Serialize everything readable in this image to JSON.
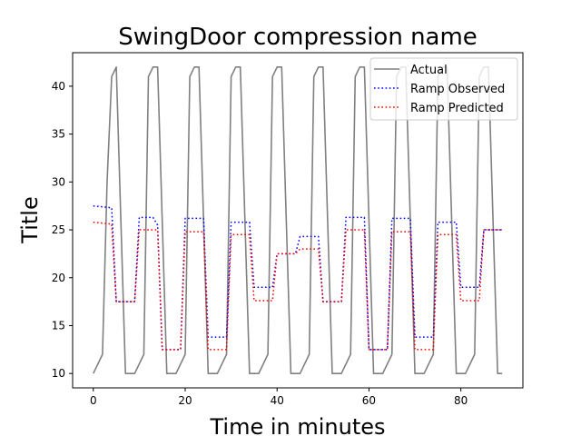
{
  "chart_data": {
    "type": "line",
    "title": "SwingDoor compression name",
    "xlabel": "Time in minutes",
    "ylabel": "Title",
    "xlim": [
      -4.5,
      93.5
    ],
    "ylim": [
      8.5,
      43.5
    ],
    "xticks": [
      0,
      20,
      40,
      60,
      80
    ],
    "yticks": [
      10,
      15,
      20,
      25,
      30,
      35,
      40
    ],
    "legend_position": "top-right",
    "grid": false,
    "series": [
      {
        "name": "Actual",
        "color": "#808080",
        "style": "solid",
        "x": [
          0,
          2,
          3,
          4,
          5,
          7,
          9,
          11,
          12,
          13,
          14,
          16,
          18,
          20,
          21,
          22,
          23,
          25,
          27,
          29,
          30,
          31,
          32,
          34,
          36,
          38,
          39,
          40,
          41,
          43,
          45,
          47,
          48,
          49,
          50,
          52,
          54,
          56,
          57,
          58,
          59,
          61,
          63,
          65,
          66,
          67,
          68,
          70,
          72,
          74,
          75,
          76,
          77,
          79,
          81,
          83,
          84,
          85,
          86,
          88,
          89
        ],
        "y": [
          10,
          12,
          30,
          41,
          42,
          10,
          10,
          12,
          41,
          42,
          42,
          10,
          10,
          12,
          41,
          42,
          42,
          10,
          10,
          12,
          41,
          42,
          42,
          10,
          10,
          12,
          41,
          42,
          42,
          10,
          10,
          12,
          41,
          42,
          42,
          10,
          10,
          12,
          41,
          42,
          42,
          10,
          10,
          12,
          41,
          42,
          42,
          10,
          10,
          12,
          41,
          42,
          42,
          10,
          10,
          12,
          41,
          42,
          42,
          10,
          10
        ]
      },
      {
        "name": "Ramp Observed",
        "color": "#0000ff",
        "style": "dotted",
        "x": [
          0,
          4,
          5,
          9,
          10,
          13,
          14,
          15,
          19,
          20,
          24,
          25,
          29,
          30,
          34,
          35,
          39,
          40,
          44,
          45,
          49,
          50,
          54,
          55,
          59,
          60,
          64,
          65,
          69,
          70,
          74,
          75,
          79,
          80,
          84,
          85,
          89
        ],
        "y": [
          27.5,
          27.3,
          17.5,
          17.5,
          26.3,
          26.3,
          25.5,
          12.5,
          12.5,
          26.2,
          26.2,
          13.8,
          13.8,
          25.8,
          25.8,
          19.0,
          19.0,
          22.5,
          22.5,
          24.3,
          24.3,
          17.5,
          17.5,
          26.3,
          26.3,
          12.5,
          12.5,
          26.2,
          26.2,
          13.8,
          13.8,
          25.8,
          25.8,
          19.0,
          19.0,
          25.0,
          25.0
        ]
      },
      {
        "name": "Ramp Predicted",
        "color": "#ff0000",
        "style": "dotted",
        "x": [
          0,
          4,
          5,
          9,
          10,
          14,
          15,
          19,
          20,
          24,
          25,
          29,
          30,
          34,
          35,
          39,
          40,
          44,
          45,
          49,
          50,
          54,
          55,
          59,
          60,
          64,
          65,
          69,
          70,
          74,
          75,
          79,
          80,
          84,
          85,
          89
        ],
        "y": [
          25.8,
          25.6,
          17.5,
          17.5,
          25.0,
          25.0,
          12.5,
          12.5,
          24.8,
          24.8,
          12.5,
          12.5,
          24.5,
          24.5,
          17.6,
          17.6,
          22.5,
          22.5,
          23.0,
          23.0,
          17.5,
          17.5,
          25.0,
          25.0,
          12.5,
          12.5,
          24.8,
          24.8,
          12.5,
          12.5,
          24.5,
          24.5,
          17.6,
          17.6,
          25.0,
          25.0
        ]
      }
    ]
  }
}
